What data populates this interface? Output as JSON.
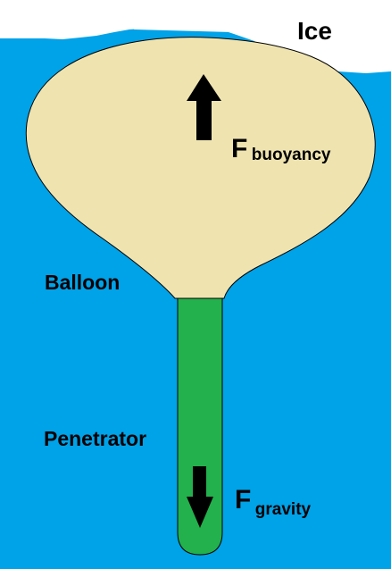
{
  "colors": {
    "water": "#00A2E8",
    "ice": "#FFFFFF",
    "balloon": "#EFE4B0",
    "penetrator": "#22B14C",
    "outline": "#000000",
    "text": "#000000"
  },
  "labels": {
    "ice": "Ice",
    "balloon": "Balloon",
    "penetrator": "Penetrator",
    "f_buoyancy_main": "F",
    "f_buoyancy_sub": "buoyancy",
    "f_gravity_main": "F",
    "f_gravity_sub": "gravity"
  },
  "icons": {
    "buoyancy_arrow": "up-arrow-icon",
    "gravity_arrow": "down-arrow-icon"
  }
}
